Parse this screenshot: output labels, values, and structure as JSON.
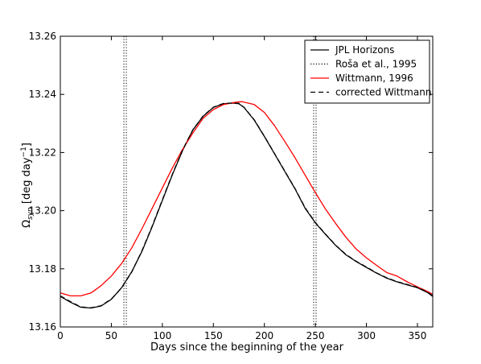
{
  "chart_data": {
    "type": "line",
    "xlabel": "Days since the beginning of the year",
    "ylabel": "Ω",
    "ylabel_sub": "syn",
    "ylabel_unit_pre": " [deg day",
    "ylabel_unit_sup": "−1",
    "ylabel_unit_post": "]",
    "xlim": [
      0,
      365
    ],
    "ylim": [
      13.16,
      13.26
    ],
    "xticks": [
      0,
      50,
      100,
      150,
      200,
      250,
      300,
      350
    ],
    "xtick_labels": [
      "0",
      "50",
      "100",
      "150",
      "200",
      "250",
      "300",
      "350"
    ],
    "yticks": [
      13.16,
      13.18,
      13.2,
      13.22,
      13.24,
      13.26
    ],
    "ytick_labels": [
      "13.16",
      "13.18",
      "13.20",
      "13.22",
      "13.24",
      "13.26"
    ],
    "legend_position": "top-right",
    "series": [
      {
        "name": "JPL Horizons",
        "color": "#000000",
        "style": "solid",
        "x": [
          0,
          10,
          20,
          30,
          40,
          50,
          60,
          70,
          80,
          90,
          100,
          110,
          120,
          130,
          140,
          150,
          160,
          170,
          175,
          180,
          190,
          200,
          210,
          220,
          230,
          240,
          250,
          260,
          270,
          280,
          290,
          300,
          310,
          320,
          330,
          340,
          350,
          360,
          365
        ],
        "y": [
          13.1705,
          13.1685,
          13.1668,
          13.1665,
          13.1672,
          13.1695,
          13.1735,
          13.179,
          13.186,
          13.1945,
          13.2035,
          13.2125,
          13.2208,
          13.2278,
          13.2325,
          13.2355,
          13.2368,
          13.237,
          13.2368,
          13.2355,
          13.2312,
          13.2255,
          13.2195,
          13.2135,
          13.2075,
          13.2008,
          13.1958,
          13.1918,
          13.188,
          13.1848,
          13.1825,
          13.1805,
          13.1785,
          13.1768,
          13.1755,
          13.1745,
          13.1735,
          13.1718,
          13.1705
        ]
      },
      {
        "name": "Roša et al., 1995",
        "color": "#000000",
        "style": "dotted",
        "x": [
          63.5,
          249.5
        ]
      },
      {
        "name": "Wittmann, 1996",
        "color": "#ff0000",
        "style": "solid",
        "x": [
          0,
          10,
          20,
          30,
          40,
          50,
          60,
          70,
          80,
          90,
          100,
          110,
          120,
          130,
          140,
          150,
          160,
          170,
          178,
          190,
          200,
          210,
          220,
          230,
          240,
          250,
          260,
          270,
          280,
          290,
          300,
          310,
          320,
          330,
          340,
          350,
          360,
          365
        ],
        "y": [
          13.1717,
          13.1707,
          13.1707,
          13.1717,
          13.1742,
          13.1775,
          13.1818,
          13.1872,
          13.1938,
          13.2008,
          13.2078,
          13.2148,
          13.2212,
          13.2268,
          13.2318,
          13.2348,
          13.2365,
          13.2372,
          13.2375,
          13.2365,
          13.2338,
          13.2292,
          13.2238,
          13.2182,
          13.2122,
          13.2062,
          13.2005,
          13.1955,
          13.1908,
          13.1868,
          13.1838,
          13.1812,
          13.1787,
          13.1775,
          13.1755,
          13.1738,
          13.1722,
          13.1712
        ]
      },
      {
        "name": "corrected Wittmann",
        "color": "#000000",
        "style": "dashed",
        "x": [
          0,
          10,
          20,
          30,
          40,
          50,
          60,
          70,
          80,
          90,
          100,
          110,
          120,
          130,
          140,
          150,
          160,
          170,
          175,
          180,
          190,
          200,
          210,
          220,
          230,
          240,
          250,
          260,
          270,
          280,
          290,
          300,
          310,
          320,
          330,
          340,
          350,
          360,
          365
        ],
        "y": [
          13.1707,
          13.1687,
          13.1669,
          13.1666,
          13.1673,
          13.1696,
          13.1734,
          13.1789,
          13.1862,
          13.1947,
          13.2037,
          13.2127,
          13.221,
          13.2279,
          13.2326,
          13.2356,
          13.2369,
          13.237,
          13.2369,
          13.2356,
          13.2313,
          13.2256,
          13.2196,
          13.2136,
          13.2076,
          13.201,
          13.1959,
          13.1919,
          13.1881,
          13.1849,
          13.1826,
          13.1806,
          13.1786,
          13.1769,
          13.1756,
          13.1746,
          13.1736,
          13.1719,
          13.1707
        ]
      }
    ]
  }
}
